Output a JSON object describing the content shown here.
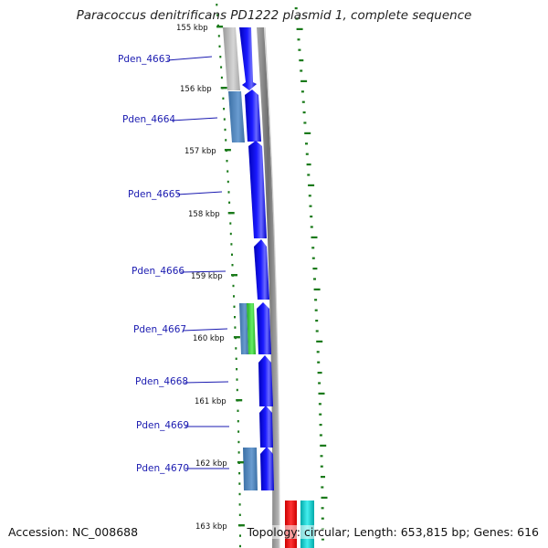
{
  "title": "Paracoccus denitrificans PD1222 plasmid 1, complete sequence",
  "footer": {
    "accession": "Accession: NC_008688",
    "topology": "Topology: circular; Length: 653,815 bp; Genes: 616"
  },
  "colors": {
    "cds_forward": "#0000ee",
    "cog_blue": "#4a7fb5",
    "cog_gray": "#b8b8b8",
    "cog_green": "#44cc44",
    "backbone": "#888888",
    "label_blue": "#1a1ab0",
    "gc_skew": "#1a7a1a",
    "rna_red": "#ee1111",
    "rna_cyan": "#11cccc"
  },
  "tick_labels": [
    "155 kbp",
    "156 kbp",
    "157 kbp",
    "158 kbp",
    "159 kbp",
    "160 kbp",
    "161 kbp",
    "162 kbp",
    "163 kbp"
  ],
  "genes": [
    {
      "name": "Pden_4663",
      "cog": "gray"
    },
    {
      "name": "Pden_4664",
      "cog": "blue"
    },
    {
      "name": "Pden_4665",
      "cog": "none"
    },
    {
      "name": "Pden_4666",
      "cog": "none"
    },
    {
      "name": "Pden_4667",
      "cog": "blue-green"
    },
    {
      "name": "Pden_4668",
      "cog": "none"
    },
    {
      "name": "Pden_4669",
      "cog": "none"
    },
    {
      "name": "Pden_4670",
      "cog": "blue"
    }
  ]
}
